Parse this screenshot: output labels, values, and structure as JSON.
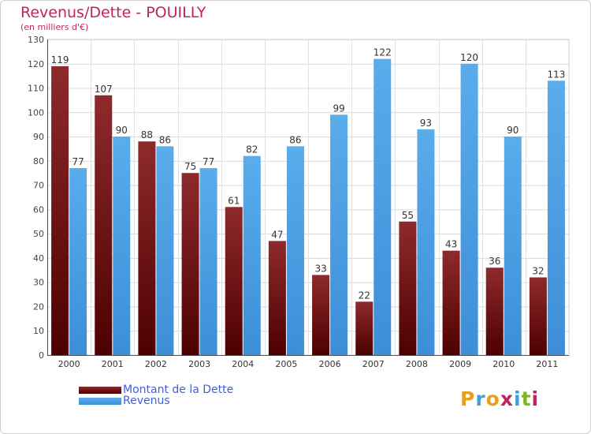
{
  "title": "Revenus/Dette - POUILLY",
  "subtitle": "(en milliers d'€)",
  "logo": "Proxiti",
  "colors": {
    "dette": "#7a1a1a",
    "revenus": "#4d9fe0",
    "title": "#c0245c",
    "legend_text": "#3c5fe0"
  },
  "chart_data": {
    "type": "bar",
    "title": "Revenus/Dette - POUILLY",
    "subtitle": "(en milliers d'€)",
    "categories": [
      "2000",
      "2001",
      "2002",
      "2003",
      "2004",
      "2005",
      "2006",
      "2007",
      "2008",
      "2009",
      "2010",
      "2011"
    ],
    "series": [
      {
        "name": "Montant de la Dette",
        "values": [
          119,
          107,
          88,
          75,
          61,
          47,
          33,
          22,
          55,
          43,
          36,
          32
        ]
      },
      {
        "name": "Revenus",
        "values": [
          77,
          90,
          86,
          77,
          82,
          86,
          99,
          122,
          93,
          120,
          90,
          113
        ]
      }
    ],
    "ylim": [
      0,
      130
    ],
    "yticks": [
      0,
      10,
      20,
      30,
      40,
      50,
      60,
      70,
      80,
      90,
      100,
      110,
      120,
      130
    ],
    "grid": true,
    "legend_position": "bottom-left"
  }
}
